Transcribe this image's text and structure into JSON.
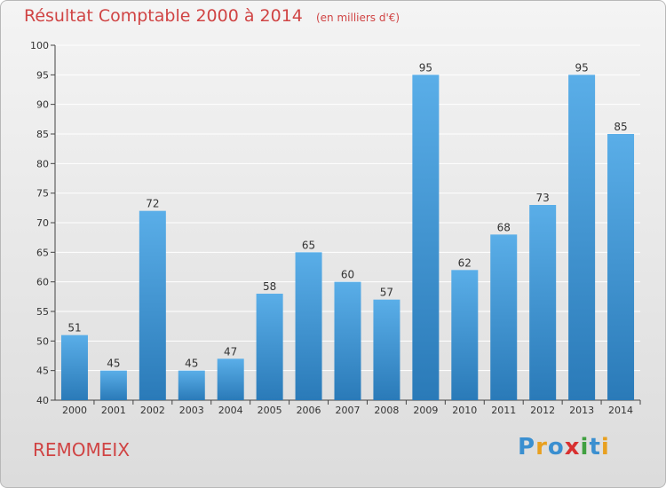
{
  "chart_data": {
    "type": "bar",
    "title": "Résultat Comptable 2000 à 2014",
    "subtitle": "(en milliers d'€)",
    "categories": [
      "2000",
      "2001",
      "2002",
      "2003",
      "2004",
      "2005",
      "2006",
      "2007",
      "2008",
      "2009",
      "2010",
      "2011",
      "2012",
      "2013",
      "2014"
    ],
    "values": [
      51,
      45,
      72,
      45,
      47,
      58,
      65,
      60,
      57,
      95,
      62,
      68,
      73,
      95,
      85
    ],
    "ylim": [
      40,
      100
    ],
    "yticks": [
      40,
      45,
      50,
      55,
      60,
      65,
      70,
      75,
      80,
      85,
      90,
      95,
      100
    ],
    "grid": true,
    "bar_color_top": "#5aaee8",
    "bar_color_bottom": "#2a7ab8"
  },
  "footer": {
    "commune": "REMOMEIX",
    "logo_letters": [
      "P",
      "r",
      "o",
      "x",
      "i",
      "t",
      "i"
    ],
    "logo_colors": [
      "#3a8fd0",
      "#e8a020",
      "#3a8fd0",
      "#d83030",
      "#40a040",
      "#3a8fd0",
      "#e8a020"
    ]
  },
  "colors": {
    "title": "#d04444",
    "grid": "#ffffff",
    "axis": "#444444"
  }
}
